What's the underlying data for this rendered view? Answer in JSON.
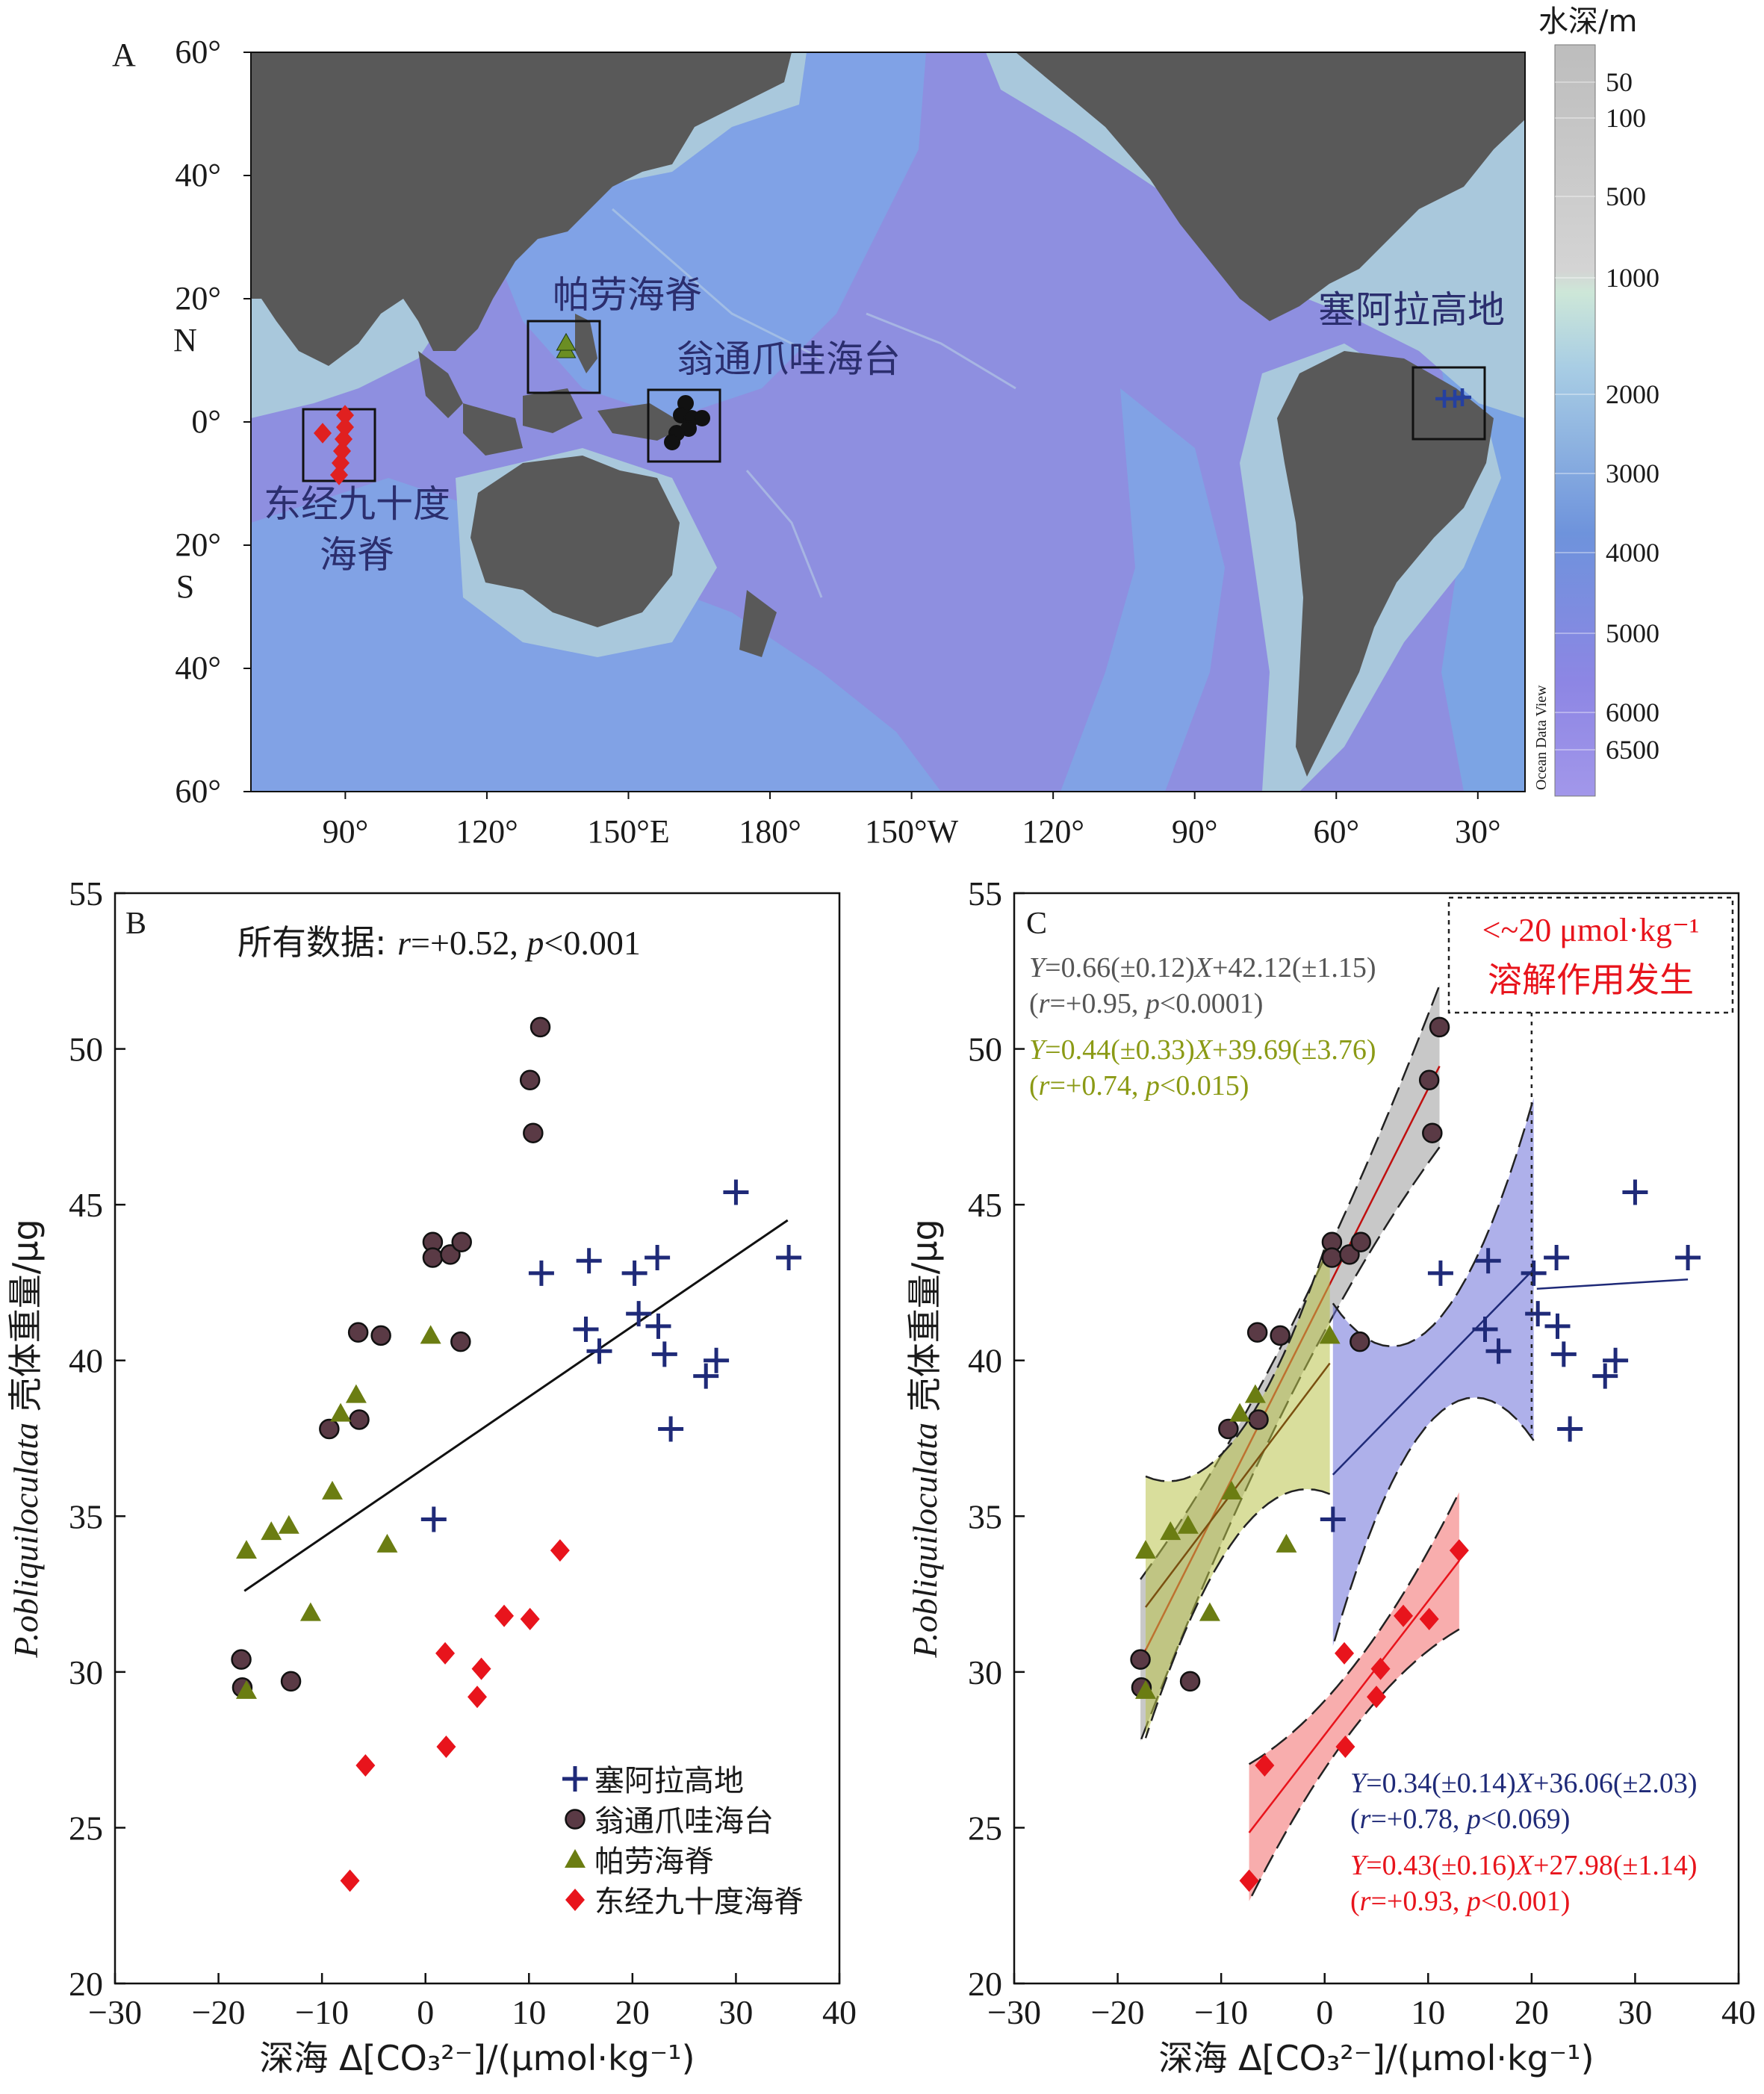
{
  "map": {
    "panel_label": "A",
    "lat_labels": [
      {
        "text": "60°",
        "lat": 60
      },
      {
        "text": "40°",
        "lat": 40
      },
      {
        "text": "20°",
        "lat": 20
      },
      {
        "text": "0°",
        "lat": 0
      },
      {
        "text": "20°",
        "lat": -20
      },
      {
        "text": "40°",
        "lat": -40
      },
      {
        "text": "60°",
        "lat": -60
      }
    ],
    "hemisphere_labels": [
      {
        "text": "N",
        "lat": 20
      },
      {
        "text": "S",
        "lat": -20
      }
    ],
    "lon_labels": [
      {
        "text": "90°",
        "lon": 90
      },
      {
        "text": "120°",
        "lon": 120
      },
      {
        "text": "150°E",
        "lon": 150
      },
      {
        "text": "180°",
        "lon": 180
      },
      {
        "text": "150°W",
        "lon": 210
      },
      {
        "text": "120°",
        "lon": 240
      },
      {
        "text": "90°",
        "lon": 270
      },
      {
        "text": "60°",
        "lon": 300
      },
      {
        "text": "30°",
        "lon": 330
      }
    ],
    "lon_range": [
      70,
      340
    ],
    "lat_range": [
      -60,
      60
    ],
    "watermark": "Ocean Data View",
    "colorbar": {
      "title": "水深/m",
      "ticks": [
        "50",
        "100",
        "500",
        "1000",
        "2000",
        "3000",
        "4000",
        "5000",
        "6000",
        "6500"
      ]
    },
    "sites": [
      {
        "name": "帕劳海脊",
        "lon": 134,
        "lat": 11,
        "marker": "triangle",
        "color": "#6b8e23"
      },
      {
        "name": "翁通爪哇海台",
        "lon": 158,
        "lat": 0,
        "marker": "circle",
        "color": "#111111"
      },
      {
        "name": "塞阿拉高地",
        "lon": 317,
        "lat": 4,
        "marker": "plus",
        "color": "#2540a0"
      },
      {
        "name_lines": [
          "东经九十度",
          "海脊"
        ],
        "lon": 90,
        "lat": -3,
        "marker": "diamond",
        "color": "#e02020"
      }
    ]
  },
  "colors": {
    "ocean_deep": "#8e8fe0",
    "ocean_mid": "#7aa8e4",
    "shelf": "#a9c4d8",
    "land": "#595959",
    "ceara": "#1f2a78",
    "ontong": "#5a3a45",
    "palau": "#6b7d12",
    "ninety": "#e8141c",
    "eq_gray": "#555555",
    "eq_olive": "#8b9a15",
    "eq_navy": "#1f2a78",
    "eq_red": "#e8141c"
  },
  "chart_data": [
    {
      "type": "scatter",
      "panel_label": "B",
      "annotation_prefix": "所有数据: ",
      "annotation_r": "r",
      "annotation_r_val": "=+0.52, ",
      "annotation_p": "p",
      "annotation_p_val": "<0.001",
      "xlabel": "深海 Δ[CO₃²⁻]/(μmol·kg⁻¹)",
      "ylabel_italic": "P.obliquiloculata",
      "ylabel_rest": " 壳体重量/μg",
      "xlim": [
        -30,
        40
      ],
      "ylim": [
        20,
        55
      ],
      "xticks": [
        -30,
        -20,
        -10,
        0,
        10,
        20,
        30,
        40
      ],
      "xtick_labels": [
        "−30",
        "−20",
        "−10",
        "0",
        "10",
        "20",
        "30",
        "40"
      ],
      "yticks": [
        20,
        25,
        30,
        35,
        40,
        45,
        50,
        55
      ],
      "legend_position": "bottom-right",
      "fit_line": {
        "x": [
          -17.5,
          35
        ],
        "y": [
          32.6,
          44.5
        ]
      },
      "series": [
        {
          "name": "塞阿拉高地",
          "marker": "plus",
          "points": [
            [
              0.8,
              34.9
            ],
            [
              11.2,
              42.8
            ],
            [
              15.8,
              43.2
            ],
            [
              15.5,
              41.0
            ],
            [
              16.8,
              40.3
            ],
            [
              20.2,
              42.8
            ],
            [
              20.6,
              41.5
            ],
            [
              22.4,
              43.3
            ],
            [
              22.5,
              41.1
            ],
            [
              23.1,
              40.2
            ],
            [
              23.7,
              37.8
            ],
            [
              27.1,
              39.5
            ],
            [
              28.1,
              40.0
            ],
            [
              30.0,
              45.4
            ],
            [
              35.1,
              43.3
            ]
          ]
        },
        {
          "name": "翁通爪哇海台",
          "marker": "circle",
          "points": [
            [
              -17.8,
              30.4
            ],
            [
              -17.7,
              29.5
            ],
            [
              -13.0,
              29.7
            ],
            [
              -9.3,
              37.8
            ],
            [
              -6.5,
              40.9
            ],
            [
              -6.4,
              38.1
            ],
            [
              -4.3,
              40.8
            ],
            [
              0.7,
              43.8
            ],
            [
              0.7,
              43.3
            ],
            [
              2.4,
              43.4
            ],
            [
              3.5,
              43.8
            ],
            [
              3.4,
              40.6
            ],
            [
              10.1,
              49.0
            ],
            [
              10.4,
              47.3
            ],
            [
              11.1,
              50.7
            ]
          ]
        },
        {
          "name": "帕劳海脊",
          "marker": "triangle",
          "points": [
            [
              -17.3,
              33.9
            ],
            [
              -17.3,
              29.4
            ],
            [
              -14.9,
              34.5
            ],
            [
              -13.2,
              34.7
            ],
            [
              -11.1,
              31.9
            ],
            [
              -9.0,
              35.8
            ],
            [
              -8.2,
              38.3
            ],
            [
              -6.7,
              38.9
            ],
            [
              -3.7,
              34.1
            ],
            [
              0.5,
              40.8
            ]
          ]
        },
        {
          "name": "东经九十度海脊",
          "marker": "diamond",
          "points": [
            [
              -7.3,
              23.3
            ],
            [
              -5.8,
              27.0
            ],
            [
              1.9,
              30.6
            ],
            [
              2.0,
              27.6
            ],
            [
              5.4,
              30.1
            ],
            [
              5.0,
              29.2
            ],
            [
              7.6,
              31.8
            ],
            [
              10.1,
              31.7
            ],
            [
              13.0,
              33.9
            ]
          ]
        }
      ]
    },
    {
      "type": "scatter",
      "panel_label": "C",
      "dissolution_box_lines": [
        "<~20 μmol·kg⁻¹",
        "溶解作用发生"
      ],
      "dissolution_threshold_x": 20,
      "xlabel": "深海 Δ[CO₃²⁻]/(μmol·kg⁻¹)",
      "ylabel_italic": "P.obliquiloculata",
      "ylabel_rest": " 壳体重量/μg",
      "xlim": [
        -30,
        40
      ],
      "ylim": [
        20,
        55
      ],
      "xticks": [
        -30,
        -20,
        -10,
        0,
        10,
        20,
        30,
        40
      ],
      "xtick_labels": [
        "−30",
        "−20",
        "−10",
        "0",
        "10",
        "20",
        "30",
        "40"
      ],
      "yticks": [
        20,
        25,
        30,
        35,
        40,
        45,
        50,
        55
      ],
      "equations": [
        {
          "line1": "Y=0.66(±0.12)X+42.12(±1.15)",
          "line2": "(r=+0.95, p<0.0001)",
          "color": "eq_gray",
          "slope": 0.66,
          "intercept": 42.12,
          "x_range": [
            -17.8,
            11.1
          ]
        },
        {
          "line1": "Y=0.44(±0.33)X+39.69(±3.76)",
          "line2": "(r=+0.74, p<0.015)",
          "color": "eq_olive",
          "slope": 0.44,
          "intercept": 39.69,
          "x_range": [
            -17.3,
            0.5
          ]
        },
        {
          "line1": "Y=0.34(±0.14)X+36.06(±2.03)",
          "line2": "(r=+0.78, p<0.069)",
          "color": "eq_navy",
          "slope": 0.34,
          "intercept": 36.06,
          "x_range": [
            0.8,
            20.2
          ]
        },
        {
          "line1": "Y=0.43(±0.16)X+27.98(±1.14)",
          "line2": "(r=+0.93, p<0.001)",
          "color": "eq_red",
          "slope": 0.43,
          "intercept": 27.98,
          "x_range": [
            -7.3,
            13.0
          ]
        }
      ],
      "ceara_upper_line": {
        "x": [
          20.5,
          35.1
        ],
        "y": [
          42.3,
          42.6
        ]
      }
    }
  ]
}
